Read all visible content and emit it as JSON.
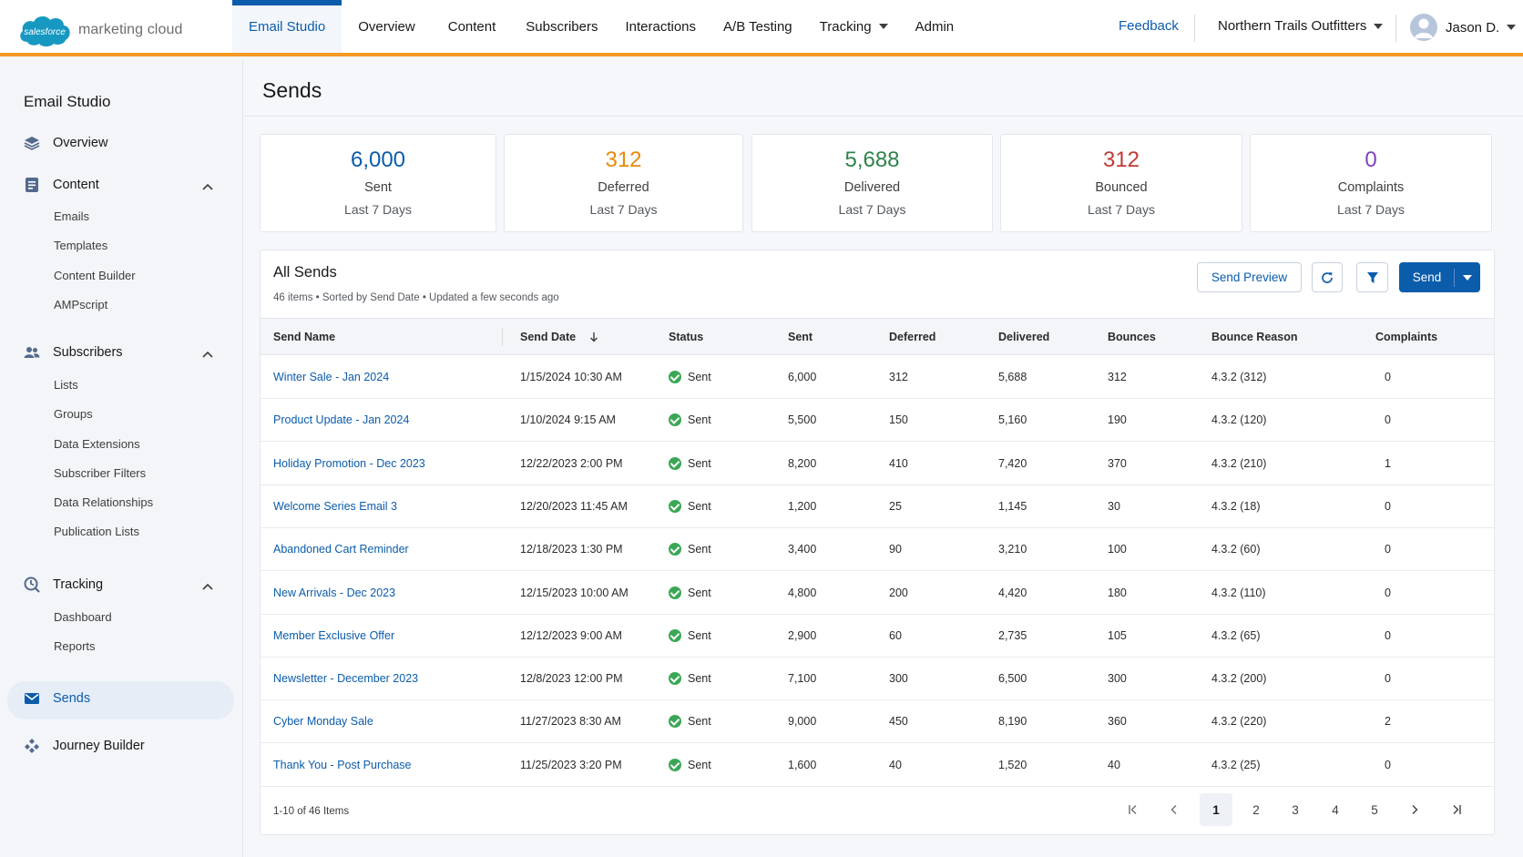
{
  "brand": {
    "logo_word": "salesforce",
    "product": "marketing cloud",
    "accent": "#f59a23",
    "primary": "#0b5cab"
  },
  "topnav": {
    "items": [
      {
        "label": "Email Studio"
      },
      {
        "label": "Overview"
      },
      {
        "label": "Content"
      },
      {
        "label": "Subscribers"
      },
      {
        "label": "Interactions"
      },
      {
        "label": "A/B Testing"
      },
      {
        "label": "Tracking"
      },
      {
        "label": "Admin"
      }
    ],
    "feedback": "Feedback",
    "org": "Northern Trails Outfitters",
    "user": "Jason D."
  },
  "sidebar": {
    "title": "Email Studio",
    "overview": "Overview",
    "content": {
      "label": "Content",
      "items": [
        "Emails",
        "Templates",
        "Content Builder",
        "AMPscript"
      ]
    },
    "subscribers": {
      "label": "Subscribers",
      "items": [
        "Lists",
        "Groups",
        "Data Extensions",
        "Subscriber Filters",
        "Data Relationships",
        "Publication Lists"
      ]
    },
    "tracking": {
      "label": "Tracking",
      "items": [
        "Dashboard",
        "Reports"
      ]
    },
    "sends": "Sends",
    "journey": "Journey Builder"
  },
  "page": {
    "title": "Sends"
  },
  "stats": [
    {
      "value": "6,000",
      "label": "Sent",
      "period": "Last 7 Days",
      "color": "#0b5cab"
    },
    {
      "value": "312",
      "label": "Deferred",
      "period": "Last 7 Days",
      "color": "#e8890c"
    },
    {
      "value": "5,688",
      "label": "Delivered",
      "period": "Last 7 Days",
      "color": "#2e844a"
    },
    {
      "value": "312",
      "label": "Bounced",
      "period": "Last 7 Days",
      "color": "#c23934"
    },
    {
      "value": "0",
      "label": "Complaints",
      "period": "Last 7 Days",
      "color": "#7f3fbf"
    }
  ],
  "table": {
    "title": "All Sends",
    "subtitle": "46 items • Sorted by Send Date • Updated a few seconds ago",
    "buttons": {
      "preview": "Send Preview",
      "send": "Send"
    },
    "columns": [
      "Send Name",
      "Send Date",
      "Status",
      "Sent",
      "Deferred",
      "Delivered",
      "Bounces",
      "Bounce Reason",
      "Complaints"
    ],
    "rows": [
      [
        "Winter Sale - Jan 2024",
        "1/15/2024 10:30 AM",
        "Sent",
        "6,000",
        "312",
        "5,688",
        "312",
        "4.3.2 (312)",
        "0"
      ],
      [
        "Product Update - Jan 2024",
        "1/10/2024 9:15 AM",
        "Sent",
        "5,500",
        "150",
        "5,160",
        "190",
        "4.3.2 (120)",
        "0"
      ],
      [
        "Holiday Promotion - Dec 2023",
        "12/22/2023 2:00 PM",
        "Sent",
        "8,200",
        "410",
        "7,420",
        "370",
        "4.3.2 (210)",
        "1"
      ],
      [
        "Welcome Series Email 3",
        "12/20/2023 11:45 AM",
        "Sent",
        "1,200",
        "25",
        "1,145",
        "30",
        "4.3.2 (18)",
        "0"
      ],
      [
        "Abandoned Cart Reminder",
        "12/18/2023 1:30 PM",
        "Sent",
        "3,400",
        "90",
        "3,210",
        "100",
        "4.3.2 (60)",
        "0"
      ],
      [
        "New Arrivals - Dec 2023",
        "12/15/2023 10:00 AM",
        "Sent",
        "4,800",
        "200",
        "4,420",
        "180",
        "4.3.2 (110)",
        "0"
      ],
      [
        "Member Exclusive Offer",
        "12/12/2023 9:00 AM",
        "Sent",
        "2,900",
        "60",
        "2,735",
        "105",
        "4.3.2 (65)",
        "0"
      ],
      [
        "Newsletter - December 2023",
        "12/8/2023 12:00 PM",
        "Sent",
        "7,100",
        "300",
        "6,500",
        "300",
        "4.3.2 (200)",
        "0"
      ],
      [
        "Cyber Monday Sale",
        "11/27/2023 8:30 AM",
        "Sent",
        "9,000",
        "450",
        "8,190",
        "360",
        "4.3.2 (220)",
        "2"
      ],
      [
        "Thank You - Post Purchase",
        "11/25/2023 3:20 PM",
        "Sent",
        "1,600",
        "40",
        "1,520",
        "40",
        "4.3.2 (25)",
        "0"
      ]
    ],
    "footer": "1-10 of 46 Items",
    "pages": [
      "1",
      "2",
      "3",
      "4",
      "5"
    ],
    "current_page": "1"
  }
}
